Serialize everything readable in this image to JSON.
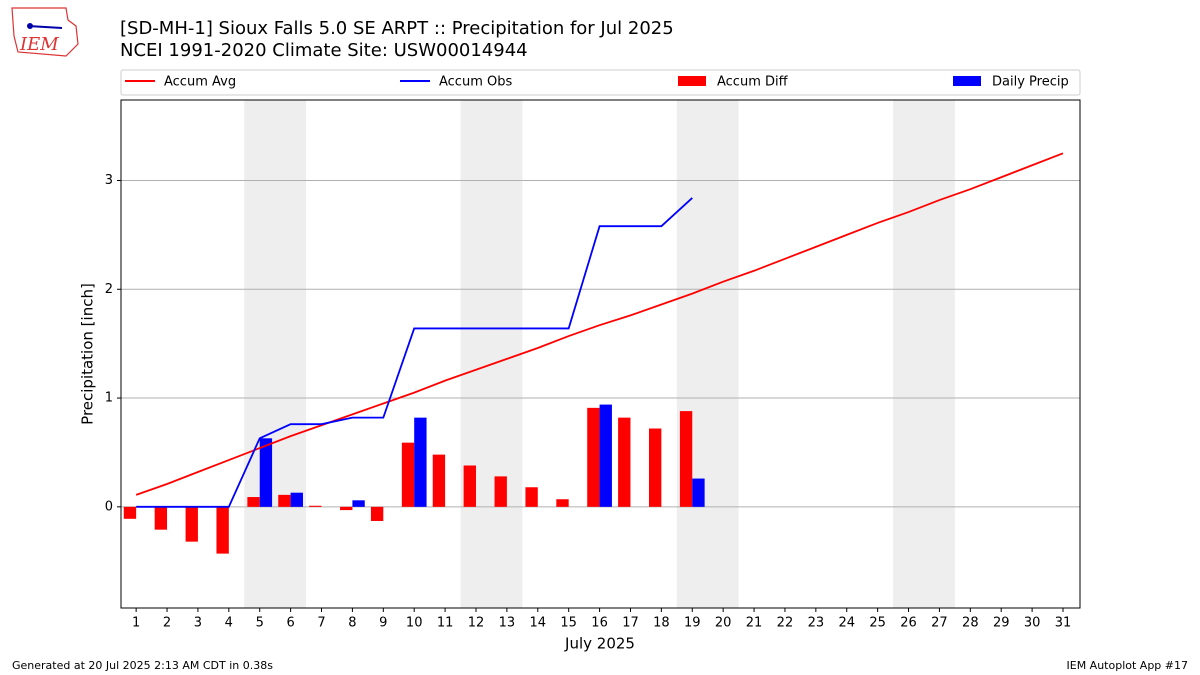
{
  "chart_data": {
    "type": "combo",
    "logo_text": "IEM",
    "title": "[SD-MH-1] Sioux Falls 5.0 SE ARPT :: Precipitation for Jul 2025",
    "subtitle": "NCEI 1991-2020 Climate Site: USW00014944",
    "xlabel": "July 2025",
    "ylabel": "Precipitation [inch]",
    "footer_left": "Generated at 20 Jul 2025 2:13 AM CDT in 0.38s",
    "footer_right": "IEM Autoplot App #17",
    "x": [
      1,
      2,
      3,
      4,
      5,
      6,
      7,
      8,
      9,
      10,
      11,
      12,
      13,
      14,
      15,
      16,
      17,
      18,
      19,
      20,
      21,
      22,
      23,
      24,
      25,
      26,
      27,
      28,
      29,
      30,
      31
    ],
    "xlim": [
      0.51,
      31.55
    ],
    "xticks": [
      1,
      2,
      3,
      4,
      5,
      6,
      7,
      8,
      9,
      10,
      11,
      12,
      13,
      14,
      15,
      16,
      17,
      18,
      19,
      20,
      21,
      22,
      23,
      24,
      25,
      26,
      27,
      28,
      29,
      30,
      31
    ],
    "ylim": [
      -0.93,
      3.74
    ],
    "yticks": [
      0,
      1,
      2,
      3
    ],
    "grid": true,
    "shaded_spans": [
      [
        4.5,
        6.5
      ],
      [
        11.5,
        13.5
      ],
      [
        18.5,
        20.5
      ],
      [
        25.5,
        27.5
      ]
    ],
    "series": [
      {
        "name": "Accum Avg",
        "type": "line",
        "color": "#ff0000",
        "values": [
          0.11,
          0.21,
          0.32,
          0.43,
          0.54,
          0.65,
          0.75,
          0.85,
          0.95,
          1.05,
          1.16,
          1.26,
          1.36,
          1.46,
          1.57,
          1.67,
          1.76,
          1.86,
          1.96,
          2.07,
          2.17,
          2.28,
          2.39,
          2.5,
          2.61,
          2.71,
          2.82,
          2.92,
          3.03,
          3.14,
          3.25
        ]
      },
      {
        "name": "Accum Obs",
        "type": "line",
        "color": "#0000ff",
        "values": [
          0,
          0,
          0,
          0,
          0.63,
          0.76,
          0.76,
          0.82,
          0.82,
          1.64,
          1.64,
          1.64,
          1.64,
          1.64,
          1.64,
          2.58,
          2.58,
          2.58,
          2.84,
          null,
          null,
          null,
          null,
          null,
          null,
          null,
          null,
          null,
          null,
          null,
          null
        ]
      },
      {
        "name": "Accum Diff",
        "type": "bar",
        "color": "#ff0000",
        "values": [
          -0.11,
          -0.21,
          -0.32,
          -0.43,
          0.09,
          0.11,
          0.01,
          -0.03,
          -0.13,
          0.59,
          0.48,
          0.38,
          0.28,
          0.18,
          0.07,
          0.91,
          0.82,
          0.72,
          0.88,
          null,
          null,
          null,
          null,
          null,
          null,
          null,
          null,
          null,
          null,
          null,
          null
        ]
      },
      {
        "name": "Daily Precip",
        "type": "bar",
        "color": "#0000ff",
        "values": [
          0,
          0,
          0,
          0,
          0.63,
          0.13,
          0,
          0.06,
          0,
          0.82,
          0,
          0,
          0,
          0,
          0,
          0.94,
          0,
          0,
          0.26,
          null,
          null,
          null,
          null,
          null,
          null,
          null,
          null,
          null,
          null,
          null,
          null
        ]
      }
    ]
  }
}
